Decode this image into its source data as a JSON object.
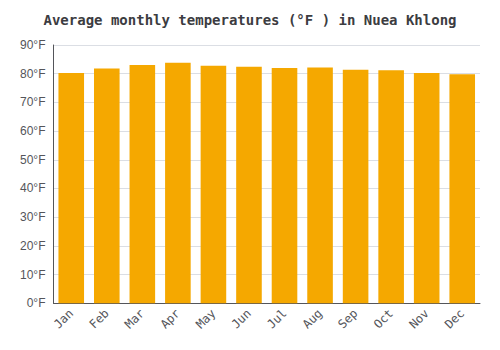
{
  "chart_data": {
    "type": "bar",
    "title": "Average monthly temperatures (°F ) in Nuea Khlong",
    "categories": [
      "Jan",
      "Feb",
      "Mar",
      "Apr",
      "May",
      "Jun",
      "Jul",
      "Aug",
      "Sep",
      "Oct",
      "Nov",
      "Dec"
    ],
    "values": [
      80.2,
      81.8,
      83.0,
      83.8,
      82.8,
      82.4,
      82.0,
      82.2,
      81.4,
      81.2,
      80.2,
      79.8
    ],
    "color": "#F5A800",
    "ylim": [
      0,
      90
    ],
    "yticks": [
      {
        "value": 0,
        "label": "0°F"
      },
      {
        "value": 10,
        "label": "10°F"
      },
      {
        "value": 20,
        "label": "20°F"
      },
      {
        "value": 30,
        "label": "30°F"
      },
      {
        "value": 40,
        "label": "40°F"
      },
      {
        "value": 50,
        "label": "50°F"
      },
      {
        "value": 60,
        "label": "60°F"
      },
      {
        "value": 70,
        "label": "70°F"
      },
      {
        "value": 80,
        "label": "80°F"
      },
      {
        "value": 90,
        "label": "90°F"
      }
    ],
    "grid": true
  }
}
